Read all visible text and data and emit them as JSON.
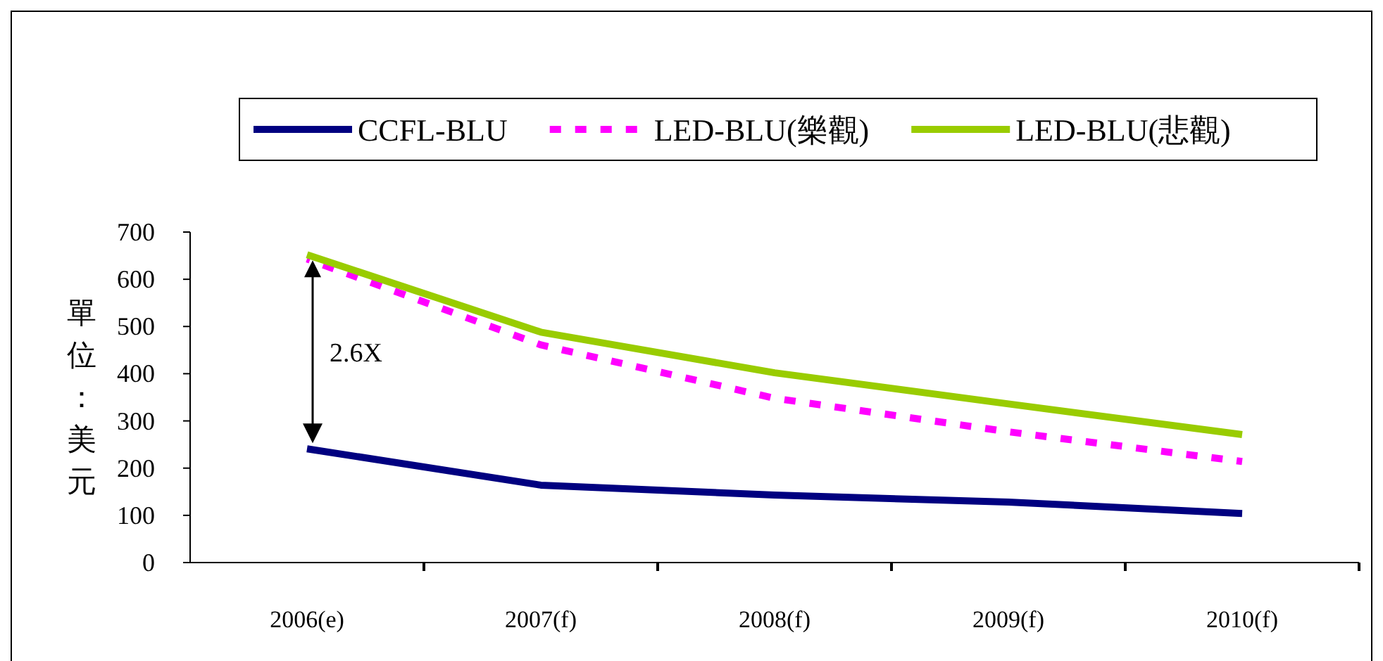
{
  "chart_data": {
    "type": "line",
    "ylabel": "單位：美元",
    "categories": [
      "2006(e)",
      "2007(f)",
      "2008(f)",
      "2009(f)",
      "2010(f)"
    ],
    "series": [
      {
        "name": "CCFL-BLU",
        "color": "#000080",
        "values": [
          241,
          164,
          143,
          128,
          104
        ],
        "line_style": "solid"
      },
      {
        "name": "LED-BLU(樂觀)",
        "color": "#ff00ff",
        "values": [
          643,
          461,
          348,
          277,
          214
        ],
        "line_style": "dashed"
      },
      {
        "name": "LED-BLU(悲觀)",
        "color": "#99cc00",
        "values": [
          652,
          488,
          402,
          336,
          271
        ],
        "line_style": "solid"
      }
    ],
    "ylim": [
      0,
      700
    ],
    "yticks": [
      0,
      100,
      200,
      300,
      400,
      500,
      600,
      700
    ],
    "grid": false,
    "legend": "top",
    "marker": "none",
    "annotations": [
      "2.6X"
    ]
  }
}
